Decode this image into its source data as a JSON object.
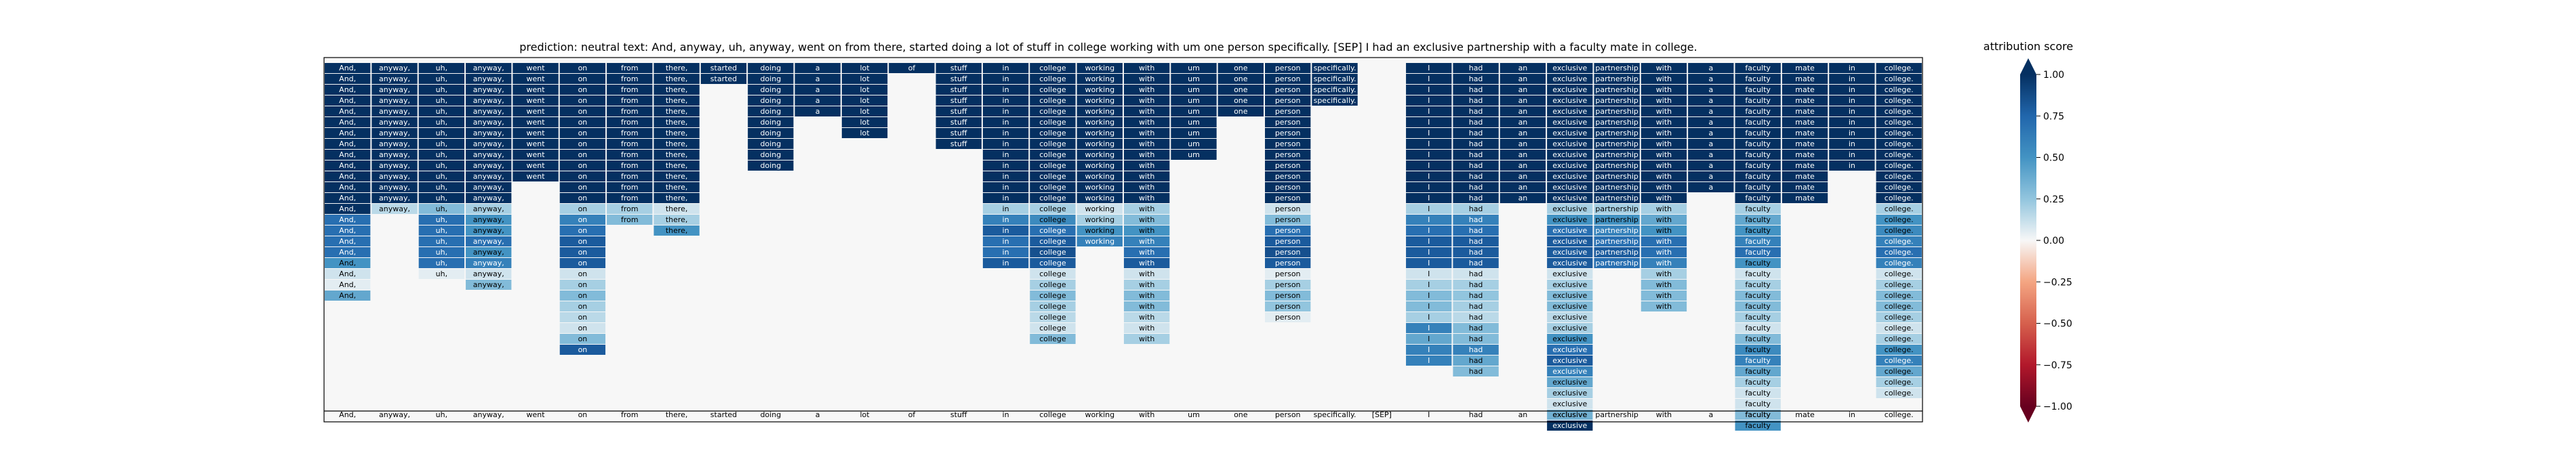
{
  "chart_data": {
    "type": "heatmap",
    "title": "prediction:  neutral     text:  And, anyway, uh, anyway, went on from there, started doing a lot of stuff in college working with um one person specifically. [SEP] I had an exclusive partnership with a faculty mate in college.",
    "tokens": [
      "And,",
      "anyway,",
      "uh,",
      "anyway,",
      "went",
      "on",
      "from",
      "there,",
      "started",
      "doing",
      "a",
      "lot",
      "of",
      "stuff",
      "in",
      "college",
      "working",
      "with",
      "um",
      "one",
      "person",
      "specifically.",
      "[SEP]",
      "I",
      "had",
      "an",
      "exclusive",
      "partnership",
      "with",
      "a",
      "faculty",
      "mate",
      "in",
      "college."
    ],
    "columns": [
      {
        "token": "And,",
        "values": [
          1,
          1,
          1,
          1,
          1,
          1,
          1,
          1,
          1,
          1,
          1,
          1,
          1,
          1,
          0.7,
          0.7,
          0.7,
          0.7,
          0.5,
          0.1,
          0.05,
          0.4
        ]
      },
      {
        "token": "anyway,",
        "values": [
          1,
          1,
          1,
          1,
          1,
          1,
          1,
          1,
          1,
          1,
          1,
          1,
          1,
          0.15
        ]
      },
      {
        "token": "uh,",
        "values": [
          1,
          1,
          1,
          1,
          1,
          1,
          1,
          1,
          1,
          1,
          1,
          1,
          1,
          0.3,
          0.7,
          0.7,
          0.7,
          0.7,
          0.7,
          0.05
        ]
      },
      {
        "token": "anyway,",
        "values": [
          1,
          1,
          1,
          1,
          1,
          1,
          1,
          1,
          1,
          1,
          1,
          1,
          1,
          0.2,
          0.5,
          0.5,
          0.7,
          0.5,
          0.6,
          0.1,
          0.3
        ]
      },
      {
        "token": "went",
        "values": [
          1,
          1,
          1,
          1,
          1,
          1,
          1,
          1,
          1,
          1,
          1
        ]
      },
      {
        "token": "on",
        "values": [
          1,
          1,
          1,
          1,
          1,
          1,
          1,
          1,
          1,
          1,
          1,
          1,
          1,
          0.2,
          0.6,
          0.7,
          0.8,
          0.8,
          0.8,
          0.1,
          0.2,
          0.3,
          0.2,
          0.15,
          0.1,
          0.3,
          0.8
        ]
      },
      {
        "token": "from",
        "values": [
          1,
          1,
          1,
          1,
          1,
          1,
          1,
          1,
          1,
          1,
          1,
          1,
          1,
          0.2,
          0.3
        ]
      },
      {
        "token": "there,",
        "values": [
          1,
          1,
          1,
          1,
          1,
          1,
          1,
          1,
          1,
          1,
          1,
          1,
          1,
          0.1,
          0.2,
          0.5
        ]
      },
      {
        "token": "started",
        "values": [
          1,
          1
        ]
      },
      {
        "token": "doing",
        "values": [
          1,
          1,
          1,
          1,
          1,
          1,
          1,
          1,
          1,
          1
        ]
      },
      {
        "token": "a",
        "values": [
          1,
          1,
          1,
          1,
          1
        ]
      },
      {
        "token": "lot",
        "values": [
          1,
          1,
          1,
          1,
          1,
          1,
          1
        ]
      },
      {
        "token": "of",
        "values": [
          1
        ]
      },
      {
        "token": "stuff",
        "values": [
          1,
          1,
          1,
          1,
          1,
          1,
          1,
          1
        ]
      },
      {
        "token": "in",
        "values": [
          1,
          1,
          1,
          1,
          1,
          1,
          1,
          1,
          1,
          1,
          1,
          1,
          1,
          0.2,
          0.6,
          0.8,
          0.7,
          0.7,
          0.8
        ]
      },
      {
        "token": "college",
        "values": [
          1,
          1,
          1,
          1,
          1,
          1,
          1,
          1,
          1,
          1,
          1,
          1,
          1,
          0.2,
          0.55,
          0.7,
          0.8,
          0.85,
          0.8,
          0.1,
          0.2,
          0.3,
          0.2,
          0.15,
          0.1,
          0.3
        ]
      },
      {
        "token": "working",
        "values": [
          1,
          1,
          1,
          1,
          1,
          1,
          1,
          1,
          1,
          1,
          1,
          1,
          1,
          0.1,
          0.2,
          0.5,
          0.6
        ]
      },
      {
        "token": "with",
        "values": [
          1,
          1,
          1,
          1,
          1,
          1,
          1,
          1,
          1,
          1,
          1,
          1,
          1,
          0.2,
          0.3,
          0.5,
          0.6,
          0.7,
          0.8,
          0.1,
          0.2,
          0.3,
          0.3,
          0.15,
          0.1,
          0.2
        ]
      },
      {
        "token": "um",
        "values": [
          1,
          1,
          1,
          1,
          1,
          1,
          1,
          1,
          1
        ]
      },
      {
        "token": "one",
        "values": [
          1,
          1,
          1,
          1,
          1
        ]
      },
      {
        "token": "person",
        "values": [
          1,
          1,
          1,
          1,
          1,
          1,
          1,
          1,
          1,
          1,
          1,
          1,
          1,
          0.1,
          0.3,
          0.7,
          0.8,
          0.85,
          0.8,
          0.05,
          0.2,
          0.3,
          0.25,
          0.05
        ]
      },
      {
        "token": "specifically.",
        "values": [
          1,
          1,
          1,
          1
        ]
      },
      {
        "token": "[SEP]",
        "values": []
      },
      {
        "token": "I",
        "values": [
          1,
          1,
          1,
          1,
          1,
          1,
          1,
          1,
          1,
          1,
          1,
          1,
          1,
          0.2,
          0.6,
          0.7,
          0.8,
          0.8,
          0.8,
          0.1,
          0.2,
          0.3,
          0.3,
          0.2,
          0.6,
          0.4,
          0.6,
          0.6
        ]
      },
      {
        "token": "had",
        "values": [
          1,
          1,
          1,
          1,
          1,
          1,
          1,
          1,
          1,
          1,
          1,
          1,
          1,
          0.2,
          0.6,
          0.7,
          0.8,
          0.8,
          0.8,
          0.1,
          0.2,
          0.25,
          0.2,
          0.15,
          0.3,
          0.3,
          0.6,
          0.4,
          0.3
        ]
      },
      {
        "token": "an",
        "values": [
          1,
          1,
          1,
          1,
          1,
          1,
          1,
          1,
          1,
          1,
          1,
          1,
          1
        ]
      },
      {
        "token": "exclusive",
        "values": [
          1,
          1,
          1,
          1,
          1,
          1,
          1,
          1,
          1,
          1,
          1,
          1,
          1,
          0.2,
          0.5,
          0.7,
          0.8,
          0.8,
          0.8,
          0.1,
          0.2,
          0.3,
          0.3,
          0.15,
          0.2,
          0.5,
          0.7,
          0.8,
          0.6,
          0.4,
          0.2,
          0.1,
          0.35,
          1
        ]
      },
      {
        "token": "partnership",
        "values": [
          1,
          1,
          1,
          1,
          1,
          1,
          1,
          1,
          1,
          1,
          1,
          1,
          1,
          0.2,
          0.5,
          0.6,
          0.7,
          0.8,
          0.7
        ]
      },
      {
        "token": "with",
        "values": [
          1,
          1,
          1,
          1,
          1,
          1,
          1,
          1,
          1,
          1,
          1,
          1,
          1,
          0.2,
          0.4,
          0.5,
          0.7,
          0.7,
          0.6,
          0.2,
          0.3,
          0.3,
          0.3
        ]
      },
      {
        "token": "a",
        "values": [
          1,
          1,
          1,
          1,
          1,
          1,
          1,
          1,
          1,
          1,
          1,
          1
        ]
      },
      {
        "token": "faculty",
        "values": [
          1,
          1,
          1,
          1,
          1,
          1,
          1,
          1,
          1,
          1,
          1,
          1,
          1,
          0.2,
          0.4,
          0.5,
          0.6,
          0.7,
          0.5,
          0.1,
          0.2,
          0.3,
          0.3,
          0.2,
          0.1,
          0.3,
          0.55,
          0.6,
          0.4,
          0.2,
          0.1,
          0.1,
          0.3,
          0.5
        ]
      },
      {
        "token": "mate",
        "values": [
          1,
          1,
          1,
          1,
          1,
          1,
          1,
          1,
          1,
          1,
          1,
          1,
          1
        ]
      },
      {
        "token": "in",
        "values": [
          1,
          1,
          1,
          1,
          1,
          1,
          1,
          1,
          1,
          1
        ]
      },
      {
        "token": "college.",
        "values": [
          1,
          1,
          1,
          1,
          1,
          1,
          1,
          1,
          1,
          1,
          1,
          1,
          1,
          0.2,
          0.5,
          0.55,
          0.6,
          0.7,
          0.6,
          0.1,
          0.2,
          0.3,
          0.3,
          0.2,
          0.1,
          0.2,
          0.5,
          0.6,
          0.4,
          0.2,
          0.1
        ]
      }
    ],
    "colorbar": {
      "label": "attribution score",
      "min": -1.0,
      "max": 1.0,
      "ticks": [
        1.0,
        0.75,
        0.5,
        0.25,
        0.0,
        -0.25,
        -0.5,
        -0.75,
        -1.0
      ],
      "tick_labels": [
        "1.00",
        "0.75",
        "0.50",
        "0.25",
        "0.00",
        "−0.25",
        "−0.50",
        "−0.75",
        "−1.00"
      ],
      "colormap": "RdBu",
      "extend": "both"
    },
    "background_color": "#f7f7f7",
    "frame_color": "#000000"
  }
}
